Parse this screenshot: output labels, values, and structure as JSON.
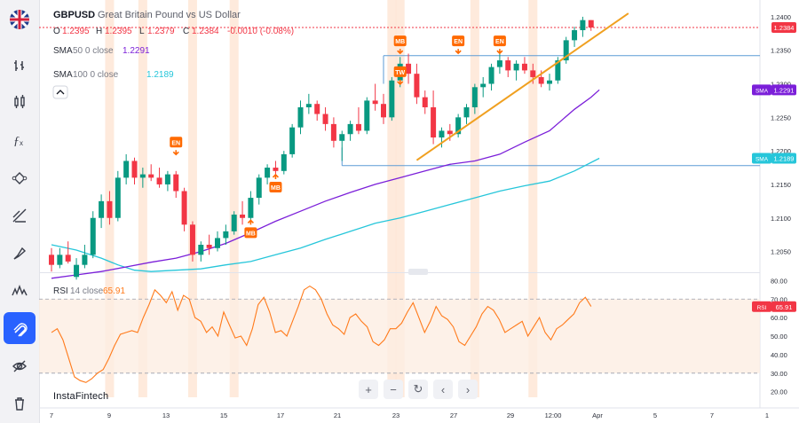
{
  "instrument": {
    "symbol": "GBPUSD",
    "name": "Great Britain Pound vs US Dollar",
    "ohlc": {
      "o_label": "O",
      "o": "1.2395",
      "h_label": "H",
      "h": "1.2395",
      "l_label": "L",
      "l": "1.2379",
      "c_label": "C",
      "c": "1.2384",
      "change": "-0.0010 (-0.08%)"
    }
  },
  "indicators": {
    "sma50": {
      "label": "SMA",
      "params": "50 0 close",
      "value": "1.2291",
      "color": "#7b1fd9"
    },
    "sma100": {
      "label": "SMA",
      "params": "100 0 close",
      "value": "1.2189",
      "color": "#26c6da"
    },
    "rsi": {
      "label": "RSI",
      "params": "14 close",
      "value": "65.91",
      "color": "#ff7a1a"
    }
  },
  "price_tag": {
    "value": "1.2384",
    "color": "#f23645"
  },
  "sma50_tag": {
    "label": "SMA",
    "value": "1.2291"
  },
  "sma100_tag": {
    "label": "SMA",
    "value": "1.2189"
  },
  "rsi_tag": {
    "label": "RSI",
    "value": "65.91"
  },
  "brand": "InstaFintech",
  "colors": {
    "up": "#089981",
    "down": "#f23645",
    "trend": "#f0a020",
    "marker": "#ff6a00"
  },
  "toolbar": {
    "icons": [
      "flag-icon",
      "indicators-icon",
      "candles-icon",
      "fx-icon",
      "nodes-icon",
      "measure-icon",
      "brush-icon",
      "waves-icon",
      "magnet-icon",
      "eye-off-icon",
      "trash-icon"
    ]
  },
  "chart_data": {
    "type": "candlestick",
    "title": "GBPUSD",
    "x_tick_labels": [
      "7",
      "9",
      "13",
      "15",
      "17",
      "21",
      "23",
      "27",
      "29",
      "12:00",
      "Apr",
      "5",
      "7",
      "1"
    ],
    "price_axis": {
      "ticks": [
        "1.2400",
        "1.2350",
        "1.2300",
        "1.2250",
        "1.2200",
        "1.2150",
        "1.2100",
        "1.2050"
      ],
      "ylim": [
        1.2019,
        1.2425
      ]
    },
    "rsi_axis": {
      "ticks": [
        "80.00",
        "70.00",
        "60.00",
        "50.00",
        "40.00",
        "30.00",
        "20.00"
      ],
      "ylim": [
        17,
        84
      ],
      "bands": [
        30,
        70
      ]
    },
    "candles": [
      {
        "o": 1.2045,
        "h": 1.2055,
        "l": 1.202,
        "c": 1.203
      },
      {
        "o": 1.203,
        "h": 1.2055,
        "l": 1.2025,
        "c": 1.2045
      },
      {
        "o": 1.2045,
        "h": 1.2065,
        "l": 1.2032,
        "c": 1.2035
      },
      {
        "o": 1.2012,
        "h": 1.204,
        "l": 1.2008,
        "c": 1.203
      },
      {
        "o": 1.203,
        "h": 1.206,
        "l": 1.2025,
        "c": 1.2045
      },
      {
        "o": 1.2045,
        "h": 1.211,
        "l": 1.204,
        "c": 1.21
      },
      {
        "o": 1.21,
        "h": 1.2135,
        "l": 1.2085,
        "c": 1.2125
      },
      {
        "o": 1.2125,
        "h": 1.214,
        "l": 1.209,
        "c": 1.21
      },
      {
        "o": 1.21,
        "h": 1.217,
        "l": 1.2095,
        "c": 1.216
      },
      {
        "o": 1.216,
        "h": 1.2195,
        "l": 1.215,
        "c": 1.2185
      },
      {
        "o": 1.2185,
        "h": 1.219,
        "l": 1.215,
        "c": 1.216
      },
      {
        "o": 1.216,
        "h": 1.2175,
        "l": 1.2145,
        "c": 1.2165
      },
      {
        "o": 1.2165,
        "h": 1.218,
        "l": 1.2155,
        "c": 1.216
      },
      {
        "o": 1.216,
        "h": 1.2175,
        "l": 1.2145,
        "c": 1.215
      },
      {
        "o": 1.215,
        "h": 1.217,
        "l": 1.214,
        "c": 1.2165
      },
      {
        "o": 1.2165,
        "h": 1.217,
        "l": 1.213,
        "c": 1.214
      },
      {
        "o": 1.214,
        "h": 1.2145,
        "l": 1.208,
        "c": 1.209
      },
      {
        "o": 1.209,
        "h": 1.2095,
        "l": 1.2035,
        "c": 1.2045
      },
      {
        "o": 1.2045,
        "h": 1.2065,
        "l": 1.2035,
        "c": 1.206
      },
      {
        "o": 1.206,
        "h": 1.2075,
        "l": 1.2045,
        "c": 1.2055
      },
      {
        "o": 1.2055,
        "h": 1.208,
        "l": 1.205,
        "c": 1.207
      },
      {
        "o": 1.207,
        "h": 1.209,
        "l": 1.206,
        "c": 1.208
      },
      {
        "o": 1.208,
        "h": 1.211,
        "l": 1.2075,
        "c": 1.2105
      },
      {
        "o": 1.2105,
        "h": 1.2125,
        "l": 1.209,
        "c": 1.21
      },
      {
        "o": 1.21,
        "h": 1.214,
        "l": 1.2095,
        "c": 1.213
      },
      {
        "o": 1.213,
        "h": 1.2165,
        "l": 1.212,
        "c": 1.216
      },
      {
        "o": 1.216,
        "h": 1.218,
        "l": 1.215,
        "c": 1.2175
      },
      {
        "o": 1.2175,
        "h": 1.2185,
        "l": 1.216,
        "c": 1.217
      },
      {
        "o": 1.217,
        "h": 1.22,
        "l": 1.2165,
        "c": 1.2195
      },
      {
        "o": 1.2195,
        "h": 1.224,
        "l": 1.219,
        "c": 1.2235
      },
      {
        "o": 1.2235,
        "h": 1.2275,
        "l": 1.2225,
        "c": 1.2265
      },
      {
        "o": 1.2265,
        "h": 1.2285,
        "l": 1.2255,
        "c": 1.227
      },
      {
        "o": 1.227,
        "h": 1.2275,
        "l": 1.2245,
        "c": 1.2255
      },
      {
        "o": 1.2255,
        "h": 1.2265,
        "l": 1.223,
        "c": 1.224
      },
      {
        "o": 1.224,
        "h": 1.225,
        "l": 1.2205,
        "c": 1.2215
      },
      {
        "o": 1.2215,
        "h": 1.223,
        "l": 1.2185,
        "c": 1.2225
      },
      {
        "o": 1.2225,
        "h": 1.2245,
        "l": 1.2215,
        "c": 1.224
      },
      {
        "o": 1.224,
        "h": 1.2265,
        "l": 1.2225,
        "c": 1.223
      },
      {
        "o": 1.223,
        "h": 1.228,
        "l": 1.2225,
        "c": 1.2275
      },
      {
        "o": 1.2275,
        "h": 1.23,
        "l": 1.226,
        "c": 1.227
      },
      {
        "o": 1.227,
        "h": 1.2285,
        "l": 1.224,
        "c": 1.225
      },
      {
        "o": 1.225,
        "h": 1.231,
        "l": 1.2245,
        "c": 1.2305
      },
      {
        "o": 1.2305,
        "h": 1.234,
        "l": 1.2295,
        "c": 1.233
      },
      {
        "o": 1.233,
        "h": 1.2345,
        "l": 1.23,
        "c": 1.2315
      },
      {
        "o": 1.2315,
        "h": 1.233,
        "l": 1.227,
        "c": 1.228
      },
      {
        "o": 1.228,
        "h": 1.229,
        "l": 1.2255,
        "c": 1.2265
      },
      {
        "o": 1.2265,
        "h": 1.229,
        "l": 1.221,
        "c": 1.222
      },
      {
        "o": 1.222,
        "h": 1.2235,
        "l": 1.2205,
        "c": 1.223
      },
      {
        "o": 1.223,
        "h": 1.224,
        "l": 1.2215,
        "c": 1.2225
      },
      {
        "o": 1.2225,
        "h": 1.2255,
        "l": 1.222,
        "c": 1.225
      },
      {
        "o": 1.225,
        "h": 1.227,
        "l": 1.224,
        "c": 1.2265
      },
      {
        "o": 1.2265,
        "h": 1.23,
        "l": 1.2255,
        "c": 1.2295
      },
      {
        "o": 1.2295,
        "h": 1.231,
        "l": 1.228,
        "c": 1.23
      },
      {
        "o": 1.23,
        "h": 1.233,
        "l": 1.229,
        "c": 1.2325
      },
      {
        "o": 1.2325,
        "h": 1.2345,
        "l": 1.2315,
        "c": 1.2335
      },
      {
        "o": 1.2335,
        "h": 1.234,
        "l": 1.231,
        "c": 1.232
      },
      {
        "o": 1.232,
        "h": 1.2335,
        "l": 1.2305,
        "c": 1.233
      },
      {
        "o": 1.233,
        "h": 1.234,
        "l": 1.2315,
        "c": 1.232
      },
      {
        "o": 1.232,
        "h": 1.233,
        "l": 1.23,
        "c": 1.231
      },
      {
        "o": 1.231,
        "h": 1.232,
        "l": 1.2295,
        "c": 1.23
      },
      {
        "o": 1.23,
        "h": 1.2315,
        "l": 1.229,
        "c": 1.2305
      },
      {
        "o": 1.2305,
        "h": 1.234,
        "l": 1.23,
        "c": 1.2335
      },
      {
        "o": 1.2335,
        "h": 1.237,
        "l": 1.233,
        "c": 1.2365
      },
      {
        "o": 1.2365,
        "h": 1.2385,
        "l": 1.2355,
        "c": 1.238
      },
      {
        "o": 1.238,
        "h": 1.24,
        "l": 1.237,
        "c": 1.2395
      },
      {
        "o": 1.2395,
        "h": 1.2395,
        "l": 1.2379,
        "c": 1.2384
      }
    ],
    "sma50_series": [
      [
        0,
        1.201
      ],
      [
        3,
        1.2015
      ],
      [
        6,
        1.202
      ],
      [
        9,
        1.2027
      ],
      [
        12,
        1.2034
      ],
      [
        15,
        1.204
      ],
      [
        18,
        1.205
      ],
      [
        21,
        1.2062
      ],
      [
        24,
        1.2078
      ],
      [
        27,
        1.2095
      ],
      [
        30,
        1.211
      ],
      [
        33,
        1.2125
      ],
      [
        36,
        1.2138
      ],
      [
        39,
        1.215
      ],
      [
        42,
        1.216
      ],
      [
        45,
        1.217
      ],
      [
        48,
        1.218
      ],
      [
        51,
        1.2185
      ],
      [
        54,
        1.2195
      ],
      [
        57,
        1.2213
      ],
      [
        60,
        1.223
      ],
      [
        63,
        1.2262
      ],
      [
        65,
        1.228
      ],
      [
        66,
        1.2291
      ]
    ],
    "sma100_series": [
      [
        0,
        1.206
      ],
      [
        3,
        1.2052
      ],
      [
        6,
        1.204
      ],
      [
        8,
        1.203
      ],
      [
        10,
        1.2022
      ],
      [
        12,
        1.202
      ],
      [
        15,
        1.2022
      ],
      [
        18,
        1.2024
      ],
      [
        21,
        1.203
      ],
      [
        24,
        1.2035
      ],
      [
        27,
        1.2045
      ],
      [
        30,
        1.2055
      ],
      [
        33,
        1.2068
      ],
      [
        36,
        1.208
      ],
      [
        39,
        1.2092
      ],
      [
        42,
        1.21
      ],
      [
        45,
        1.211
      ],
      [
        48,
        1.212
      ],
      [
        51,
        1.213
      ],
      [
        54,
        1.214
      ],
      [
        57,
        1.2148
      ],
      [
        60,
        1.2155
      ],
      [
        63,
        1.217
      ],
      [
        66,
        1.2189
      ]
    ],
    "levels": [
      {
        "name": "last-price-line",
        "value": 1.2384,
        "style": "dotted",
        "color": "#f23645"
      },
      {
        "name": "resistance-line",
        "value": 1.2342,
        "color": "#5b9bd5"
      },
      {
        "name": "support-line",
        "value": 1.2178,
        "color": "#5b9bd5"
      }
    ],
    "trendline": [
      [
        44,
        1.2186
      ],
      [
        66,
        1.2375
      ]
    ],
    "highlight_columns": [
      7,
      11,
      17,
      22,
      41,
      42,
      51,
      58
    ],
    "markers": [
      {
        "label": "EN",
        "i": 15,
        "price": 1.2213,
        "dir": "down"
      },
      {
        "label": "MB",
        "i": 24,
        "price": 1.2078,
        "dir": "up"
      },
      {
        "label": "MB",
        "i": 27,
        "price": 1.2146,
        "dir": "up"
      },
      {
        "label": "MB",
        "i": 42,
        "price": 1.2364,
        "dir": "down"
      },
      {
        "label": "TW",
        "i": 42,
        "price": 1.2318,
        "dir": "down"
      },
      {
        "label": "EN",
        "i": 49,
        "price": 1.2364,
        "dir": "down"
      },
      {
        "label": "EN",
        "i": 54,
        "price": 1.2364,
        "dir": "down"
      }
    ],
    "rsi_series": [
      52,
      54,
      48,
      38,
      28,
      26,
      25,
      27,
      30,
      32,
      38,
      45,
      51,
      52,
      53,
      52,
      60,
      67,
      75,
      72,
      68,
      74,
      64,
      72,
      70,
      60,
      58,
      52,
      55,
      50,
      63,
      56,
      49,
      50,
      45,
      54,
      67,
      71,
      63,
      52,
      53,
      50,
      58,
      66,
      75,
      77,
      75,
      70,
      62,
      56,
      54,
      51,
      60,
      62,
      58,
      55,
      47,
      45,
      48,
      54,
      54,
      57,
      63,
      68,
      60,
      52,
      58,
      66,
      61,
      59,
      55,
      47,
      45,
      50,
      55,
      62,
      66,
      64,
      59,
      52,
      54,
      56,
      58,
      50,
      55,
      60,
      52,
      48,
      54,
      56,
      59,
      62,
      68,
      71,
      66
    ]
  }
}
